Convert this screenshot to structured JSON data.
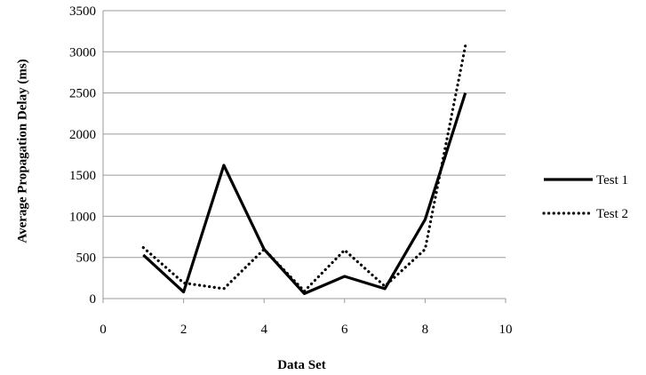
{
  "chart_data": {
    "type": "line",
    "title": "",
    "xlabel": "Data Set",
    "ylabel": "Average Propagation Delay (ms)",
    "xlim": [
      0,
      10
    ],
    "ylim": [
      0,
      3500
    ],
    "xticks": [
      "0",
      "2",
      "4",
      "6",
      "8",
      "10"
    ],
    "yticks": [
      "0",
      "500",
      "1000",
      "1500",
      "2000",
      "2500",
      "3000",
      "3500"
    ],
    "grid": "horizontal",
    "legend_position": "right",
    "x": [
      1,
      2,
      3,
      4,
      5,
      6,
      7,
      8,
      9
    ],
    "series": [
      {
        "name": "Test 1",
        "style": "solid",
        "color": "#000000",
        "values": [
          530,
          80,
          1620,
          600,
          60,
          270,
          120,
          960,
          2500
        ]
      },
      {
        "name": "Test 2",
        "style": "dotted",
        "color": "#000000",
        "values": [
          620,
          190,
          120,
          600,
          90,
          590,
          150,
          600,
          3070
        ]
      }
    ]
  }
}
